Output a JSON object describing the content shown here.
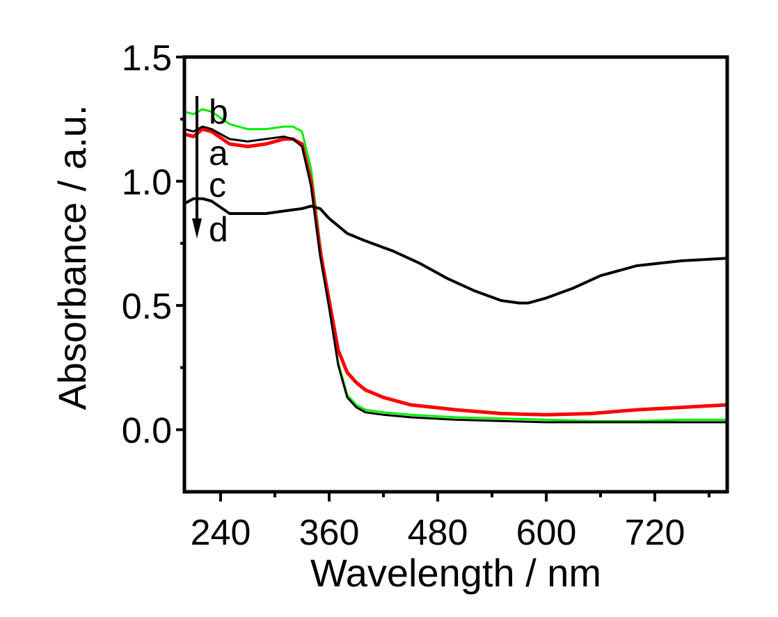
{
  "chart_data": {
    "type": "line",
    "title": "",
    "xlabel": "Wavelength / nm",
    "ylabel": "Absorbance / a.u.",
    "xlim": [
      200,
      800
    ],
    "ylim": [
      -0.25,
      1.5
    ],
    "xticks": [
      240,
      360,
      480,
      600,
      720
    ],
    "xtick_labels": [
      "240",
      "360",
      "480",
      "600",
      "720"
    ],
    "yticks": [
      0.0,
      0.5,
      1.0,
      1.5
    ],
    "ytick_labels": [
      "0.0",
      "0.5",
      "1.0",
      "1.5"
    ],
    "grid": false,
    "annotations": {
      "labels": [
        "b",
        "a",
        "c",
        "d"
      ],
      "arrow": "downward arrow from b to d"
    },
    "series": [
      {
        "name": "b",
        "color": "#00ee00",
        "x": [
          200,
          210,
          220,
          230,
          250,
          270,
          290,
          310,
          320,
          330,
          340,
          350,
          360,
          370,
          380,
          390,
          400,
          420,
          450,
          500,
          550,
          600,
          650,
          700,
          750,
          800
        ],
        "y": [
          1.28,
          1.27,
          1.29,
          1.28,
          1.23,
          1.21,
          1.21,
          1.22,
          1.22,
          1.2,
          1.05,
          0.75,
          0.5,
          0.27,
          0.14,
          0.1,
          0.08,
          0.07,
          0.06,
          0.05,
          0.045,
          0.04,
          0.035,
          0.035,
          0.04,
          0.04
        ]
      },
      {
        "name": "a",
        "color": "#ff0000",
        "x": [
          200,
          210,
          220,
          230,
          250,
          270,
          290,
          310,
          320,
          330,
          340,
          350,
          360,
          370,
          380,
          390,
          400,
          420,
          450,
          500,
          550,
          600,
          650,
          700,
          750,
          800
        ],
        "y": [
          1.19,
          1.18,
          1.21,
          1.2,
          1.15,
          1.14,
          1.15,
          1.17,
          1.17,
          1.15,
          1.0,
          0.72,
          0.52,
          0.32,
          0.23,
          0.19,
          0.16,
          0.13,
          0.1,
          0.08,
          0.065,
          0.06,
          0.065,
          0.08,
          0.09,
          0.1
        ]
      },
      {
        "name": "c",
        "color": "#000000",
        "x": [
          200,
          210,
          220,
          230,
          250,
          270,
          290,
          310,
          320,
          330,
          340,
          350,
          360,
          370,
          380,
          390,
          400,
          420,
          450,
          500,
          550,
          600,
          650,
          700,
          750,
          800
        ],
        "y": [
          1.21,
          1.2,
          1.22,
          1.21,
          1.17,
          1.16,
          1.17,
          1.18,
          1.17,
          1.14,
          0.98,
          0.7,
          0.49,
          0.26,
          0.13,
          0.09,
          0.07,
          0.06,
          0.05,
          0.04,
          0.035,
          0.03,
          0.03,
          0.03,
          0.03,
          0.03
        ]
      },
      {
        "name": "d",
        "color": "#000000",
        "x": [
          200,
          210,
          220,
          230,
          250,
          270,
          290,
          310,
          330,
          340,
          350,
          360,
          380,
          400,
          430,
          460,
          490,
          520,
          550,
          570,
          580,
          600,
          630,
          660,
          700,
          750,
          800
        ],
        "y": [
          0.91,
          0.93,
          0.93,
          0.92,
          0.87,
          0.87,
          0.87,
          0.88,
          0.89,
          0.9,
          0.89,
          0.85,
          0.79,
          0.76,
          0.72,
          0.67,
          0.61,
          0.56,
          0.52,
          0.51,
          0.51,
          0.53,
          0.57,
          0.62,
          0.66,
          0.68,
          0.69
        ]
      }
    ]
  }
}
